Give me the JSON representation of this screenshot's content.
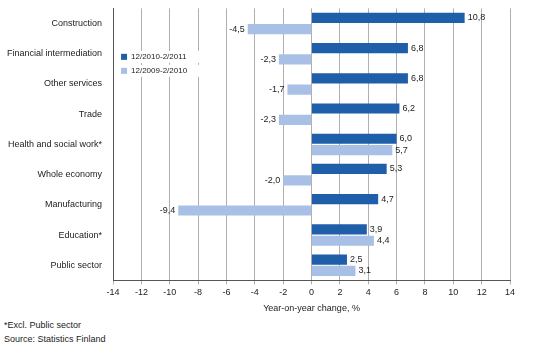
{
  "chart_data": {
    "type": "bar",
    "orientation": "horizontal",
    "categories": [
      "Construction",
      "Financial intermediation",
      "Other services",
      "Trade",
      "Health and social work*",
      "Whole economy",
      "Manufacturing",
      "Education*",
      "Public sector"
    ],
    "series": [
      {
        "name": "12/2010-2/2011",
        "color": "#1f5ea8",
        "values": [
          10.8,
          6.8,
          6.8,
          6.2,
          6.0,
          5.3,
          4.7,
          3.9,
          2.5
        ],
        "value_labels": [
          "10,8",
          "6,8",
          "6,8",
          "6,2",
          "6,0",
          "5,3",
          "4,7",
          "3,9",
          "2,5"
        ]
      },
      {
        "name": "12/2009-2/2010",
        "color": "#a8c0e6",
        "values": [
          -4.5,
          -2.3,
          -1.7,
          -2.3,
          5.7,
          -2.0,
          -9.4,
          4.4,
          3.1
        ],
        "value_labels": [
          "-4,5",
          "-2,3",
          "-1,7",
          "-2,3",
          "5,7",
          "-2,0",
          "-9,4",
          "4,4",
          "3,1"
        ]
      }
    ],
    "xlabel": "Year-on-year change, %",
    "xlim": [
      -14,
      14
    ],
    "xticks": [
      -14,
      -12,
      -10,
      -8,
      -6,
      -4,
      -2,
      0,
      2,
      4,
      6,
      8,
      10,
      12,
      14
    ],
    "grid": true,
    "legend": "left",
    "data_labels": true,
    "annotations": [
      "*Excl. Public sector",
      "Source: Statistics Finland"
    ]
  }
}
